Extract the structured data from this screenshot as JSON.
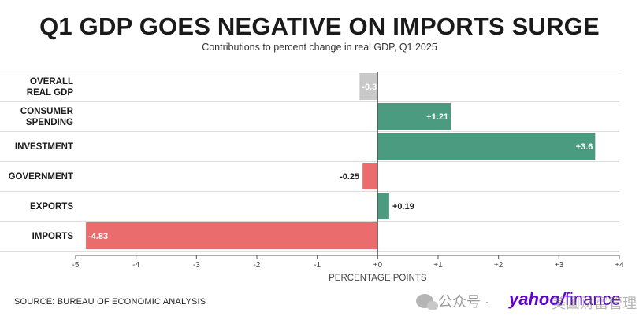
{
  "chart_data": {
    "type": "bar",
    "orientation": "horizontal",
    "title": "Q1 GDP GOES NEGATIVE ON IMPORTS SURGE",
    "subtitle": "Contributions to percent change in real GDP, Q1 2025",
    "xlabel": "PERCENTAGE POINTS",
    "xlim": [
      -5,
      4
    ],
    "xticks": [
      "-5",
      "-4",
      "-3",
      "-2",
      "-1",
      "+0",
      "+1",
      "+2",
      "+3",
      "+4"
    ],
    "categories": [
      [
        "OVERALL",
        "REAL GDP"
      ],
      [
        "CONSUMER",
        "SPENDING"
      ],
      [
        "INVESTMENT"
      ],
      [
        "GOVERNMENT"
      ],
      [
        "EXPORTS"
      ],
      [
        "IMPORTS"
      ]
    ],
    "values": [
      -0.3,
      1.21,
      3.6,
      -0.25,
      0.19,
      -4.83
    ],
    "labels": [
      "-0.3",
      "+1.21",
      "+3.6",
      "-0.25",
      "+0.19",
      "-4.83"
    ],
    "colors": {
      "total": "#c9c9c9",
      "positive": "#4a9b80",
      "negative": "#ea6c6c",
      "grid": "#dddddd",
      "axis": "#555555"
    },
    "source": "SOURCE: BUREAU OF ECONOMIC ANALYSIS"
  },
  "watermark": {
    "channel": "公众号 ·",
    "brand_yahoo": "yahoo/",
    "brand_finance": "finance",
    "brand_overlay": "美国财富管理"
  }
}
